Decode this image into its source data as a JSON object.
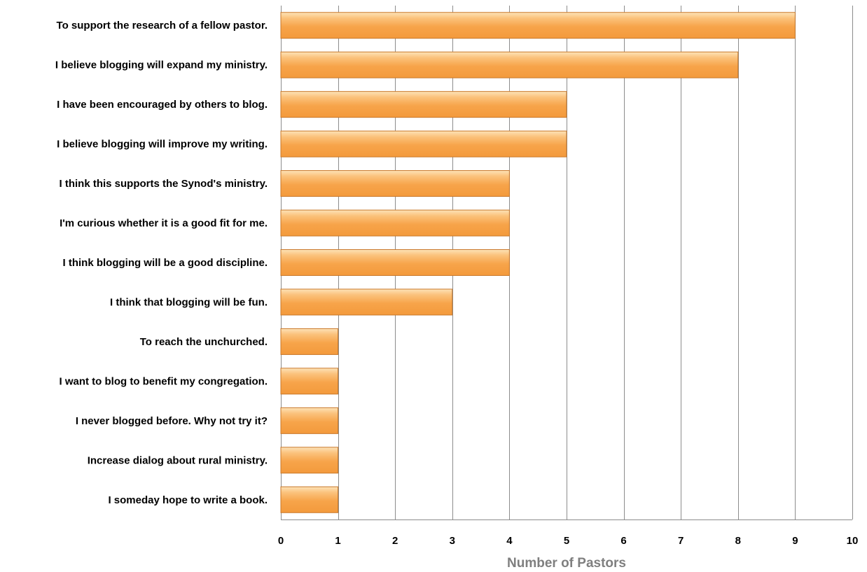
{
  "chart_data": {
    "type": "bar",
    "orientation": "horizontal",
    "categories": [
      "To support the research of a fellow pastor.",
      "I believe blogging will expand my ministry.",
      "I have been encouraged by others to blog.",
      "I believe blogging will improve my writing.",
      "I think this supports the Synod's ministry.",
      "I'm curious whether it is a good fit for me.",
      "I think  blogging will be a good discipline.",
      "I think that blogging will be fun.",
      "To reach the unchurched.",
      "I want to blog to benefit my congregation.",
      "I never blogged before. Why not try it?",
      "Increase dialog about rural ministry.",
      "I someday hope to write a book."
    ],
    "values": [
      9,
      8,
      5,
      5,
      4,
      4,
      4,
      3,
      1,
      1,
      1,
      1,
      1
    ],
    "title": "",
    "xlabel": "Number of Pastors",
    "ylabel": "",
    "xlim": [
      0,
      10
    ],
    "x_ticks": [
      0,
      1,
      2,
      3,
      4,
      5,
      6,
      7,
      8,
      9,
      10
    ],
    "grid": "vertical",
    "legend": "none",
    "colors": {
      "bar_fill": "#f7a44a",
      "bar_highlight": "#fde3b8",
      "bar_stroke": "#c9782a",
      "grid": "#8c8c8c",
      "axis_title": "#7f7f7f"
    }
  }
}
